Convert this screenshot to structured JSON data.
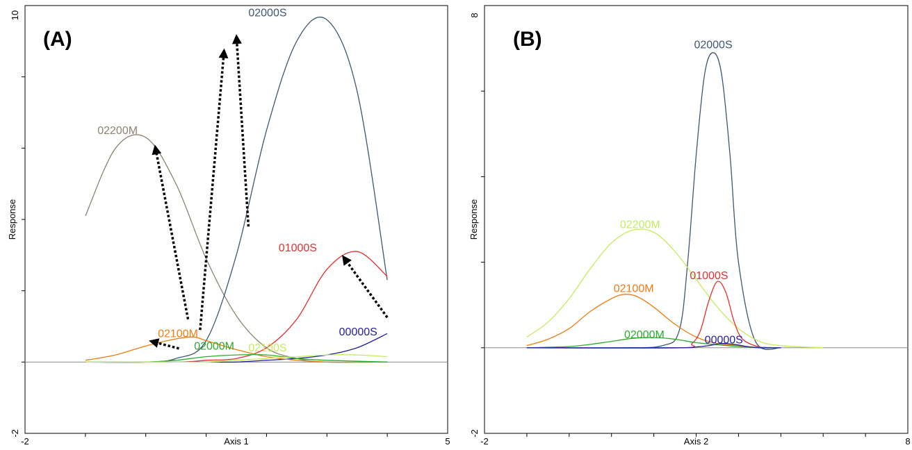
{
  "chart_data": [
    {
      "type": "line",
      "panel_label": "(A)",
      "xlabel": "Axis 1",
      "ylabel": "Response",
      "xlim": [
        -2,
        5
      ],
      "ylim": [
        -2,
        10
      ],
      "x_tick_labels": [
        "-2",
        "5"
      ],
      "y_tick_labels": [
        "-2",
        "10"
      ],
      "x_minor_ticks": [
        -1,
        0,
        1,
        2,
        3,
        4
      ],
      "y_minor_ticks": [
        0,
        2,
        4,
        6,
        8
      ],
      "baseline_y": 0,
      "series": [
        {
          "name": "02200M",
          "color": "#8c8373",
          "x": [
            -1,
            -0.5,
            0,
            0.5,
            1,
            1.5,
            2,
            2.5,
            3,
            4
          ],
          "y": [
            4.1,
            6.0,
            6.3,
            5.0,
            2.9,
            1.3,
            0.4,
            0.1,
            0.0,
            0.0
          ]
        },
        {
          "name": "02000S",
          "color": "#3f5672",
          "x": [
            -1,
            0,
            0.5,
            1,
            1.5,
            2,
            2.5,
            3,
            3.5,
            4
          ],
          "y": [
            0.0,
            0.0,
            0.1,
            0.6,
            3.0,
            6.5,
            9.0,
            9.6,
            7.6,
            2.3
          ]
        },
        {
          "name": "01000S",
          "color": "#e62e2e",
          "x": [
            -1,
            0.5,
            1,
            1.5,
            2,
            2.5,
            3,
            3.5,
            4
          ],
          "y": [
            0.0,
            0.0,
            0.05,
            0.1,
            0.4,
            1.2,
            2.6,
            3.1,
            2.4
          ]
        },
        {
          "name": "00000S",
          "color": "#1f1fa0",
          "x": [
            -1,
            0.5,
            1,
            1.5,
            2,
            2.5,
            3,
            3.5,
            4
          ],
          "y": [
            0.0,
            0.0,
            0.0,
            0.0,
            0.05,
            0.1,
            0.2,
            0.4,
            0.8
          ]
        },
        {
          "name": "02100M",
          "color": "#f07c12",
          "x": [
            -1,
            -0.5,
            0,
            0.5,
            0.8,
            1,
            1.5,
            2,
            2.5,
            3,
            4
          ],
          "y": [
            0.05,
            0.2,
            0.45,
            0.65,
            0.7,
            0.6,
            0.35,
            0.15,
            0.05,
            0.0,
            0.0
          ]
        },
        {
          "name": "02000M",
          "color": "#2aab2a",
          "x": [
            -1,
            0,
            0.5,
            1,
            1.5,
            2,
            2.5,
            3,
            4
          ],
          "y": [
            0.0,
            0.0,
            0.05,
            0.15,
            0.2,
            0.2,
            0.1,
            0.05,
            0.0
          ]
        },
        {
          "name": "02100S",
          "color": "#c4ec5c",
          "x": [
            -1,
            0.5,
            1,
            1.5,
            2,
            2.5,
            3,
            3.5,
            4
          ],
          "y": [
            0.0,
            0.0,
            0.0,
            0.05,
            0.1,
            0.15,
            0.2,
            0.2,
            0.15
          ]
        }
      ],
      "series_labels": [
        {
          "text": "02200M",
          "x": -0.8,
          "y": 6.4,
          "color": "#8c8373"
        },
        {
          "text": "02000S",
          "x": 1.7,
          "y": 9.7,
          "color": "#3f5672"
        },
        {
          "text": "01000S",
          "x": 2.2,
          "y": 3.1,
          "color": "#e62e2e"
        },
        {
          "text": "00000S",
          "x": 3.2,
          "y": 0.75,
          "color": "#1f1fa0"
        },
        {
          "text": "02100M",
          "x": 0.2,
          "y": 0.7,
          "color": "#f07c12"
        },
        {
          "text": "02000M",
          "x": 0.8,
          "y": 0.35,
          "color": "#2aab2a"
        },
        {
          "text": "02100S",
          "x": 1.7,
          "y": 0.3,
          "color": "#c4ec5c"
        }
      ],
      "annotation_arrows": [
        {
          "from": [
            0.7,
            1.2
          ],
          "to": [
            0.15,
            6.1
          ]
        },
        {
          "from": [
            1.7,
            3.8
          ],
          "to": [
            1.5,
            9.2
          ]
        },
        {
          "from": [
            0.9,
            0.9
          ],
          "to": [
            1.3,
            8.8
          ]
        },
        {
          "from": [
            4.0,
            1.25
          ],
          "to": [
            3.25,
            3.0
          ]
        },
        {
          "from": [
            0.55,
            0.38
          ],
          "to": [
            0.05,
            0.6
          ]
        }
      ]
    },
    {
      "type": "line",
      "panel_label": "(B)",
      "xlabel": "Axis 2",
      "ylabel": "Response",
      "xlim": [
        -2,
        8
      ],
      "ylim": [
        -2,
        8
      ],
      "x_tick_labels": [
        "-2",
        "8"
      ],
      "y_tick_labels": [
        "-2",
        "8"
      ],
      "x_minor_ticks": [
        -1,
        0,
        1,
        2,
        3,
        4,
        5,
        6,
        7
      ],
      "y_minor_ticks": [
        0,
        2,
        4,
        6
      ],
      "baseline_y": 0,
      "series": [
        {
          "name": "02000S",
          "color": "#3f5672",
          "x": [
            -1,
            1.2,
            2.2,
            2.6,
            2.8,
            3.0,
            3.2,
            3.4,
            3.6,
            3.8,
            4.0,
            4.4,
            5.0
          ],
          "y": [
            0.0,
            0.0,
            0.05,
            0.4,
            2.0,
            4.5,
            6.4,
            6.9,
            6.4,
            4.5,
            2.0,
            0.15,
            0.0
          ]
        },
        {
          "name": "02200M",
          "color": "#c4ec5c",
          "x": [
            -1,
            -0.5,
            0,
            0.5,
            1.0,
            1.5,
            2.0,
            2.5,
            3.0,
            3.5,
            4.0,
            4.5,
            5.0,
            6.0
          ],
          "y": [
            0.25,
            0.6,
            1.15,
            1.85,
            2.45,
            2.75,
            2.7,
            2.25,
            1.6,
            0.95,
            0.45,
            0.15,
            0.05,
            0.0
          ]
        },
        {
          "name": "02100M",
          "color": "#f07c12",
          "x": [
            -1,
            -0.5,
            0,
            0.5,
            1.0,
            1.3,
            1.6,
            2.0,
            2.5,
            3.0,
            3.5,
            4.0,
            4.5,
            5.0
          ],
          "y": [
            0.05,
            0.2,
            0.45,
            0.85,
            1.15,
            1.25,
            1.2,
            0.95,
            0.55,
            0.25,
            0.1,
            0.05,
            0.0,
            0.0
          ]
        },
        {
          "name": "01000S",
          "color": "#e62e2e",
          "x": [
            -1,
            2.6,
            2.9,
            3.1,
            3.3,
            3.5,
            3.7,
            3.9,
            4.1,
            4.5,
            5.0
          ],
          "y": [
            0.0,
            0.0,
            0.1,
            0.4,
            1.1,
            1.55,
            1.3,
            0.6,
            0.2,
            0.02,
            0.0
          ]
        },
        {
          "name": "02000M",
          "color": "#2aab2a",
          "x": [
            -1,
            0,
            0.5,
            1.0,
            1.5,
            2.0,
            2.5,
            3.0,
            3.5,
            4.0,
            4.5,
            5.0
          ],
          "y": [
            0.0,
            0.03,
            0.08,
            0.15,
            0.22,
            0.24,
            0.2,
            0.12,
            0.07,
            0.03,
            0.01,
            0.0
          ]
        },
        {
          "name": "00000S",
          "color": "#1f1fa0",
          "x": [
            -1,
            2.5,
            3.0,
            3.3,
            3.6,
            3.9,
            4.2,
            4.5,
            5.0
          ],
          "y": [
            0.0,
            0.0,
            0.02,
            0.05,
            0.1,
            0.08,
            0.03,
            0.0,
            0.0
          ]
        }
      ],
      "series_labels": [
        {
          "text": "02000S",
          "x": 2.95,
          "y": 7.0,
          "color": "#3f5672"
        },
        {
          "text": "02200M",
          "x": 1.2,
          "y": 2.8,
          "color": "#c4ec5c"
        },
        {
          "text": "01000S",
          "x": 2.85,
          "y": 1.6,
          "color": "#e62e2e"
        },
        {
          "text": "02100M",
          "x": 1.05,
          "y": 1.3,
          "color": "#f07c12"
        },
        {
          "text": "02000M",
          "x": 1.3,
          "y": 0.22,
          "color": "#2aab2a"
        },
        {
          "text": "00000S",
          "x": 3.2,
          "y": 0.1,
          "color": "#1f1fa0"
        }
      ],
      "annotation_arrows": []
    }
  ]
}
